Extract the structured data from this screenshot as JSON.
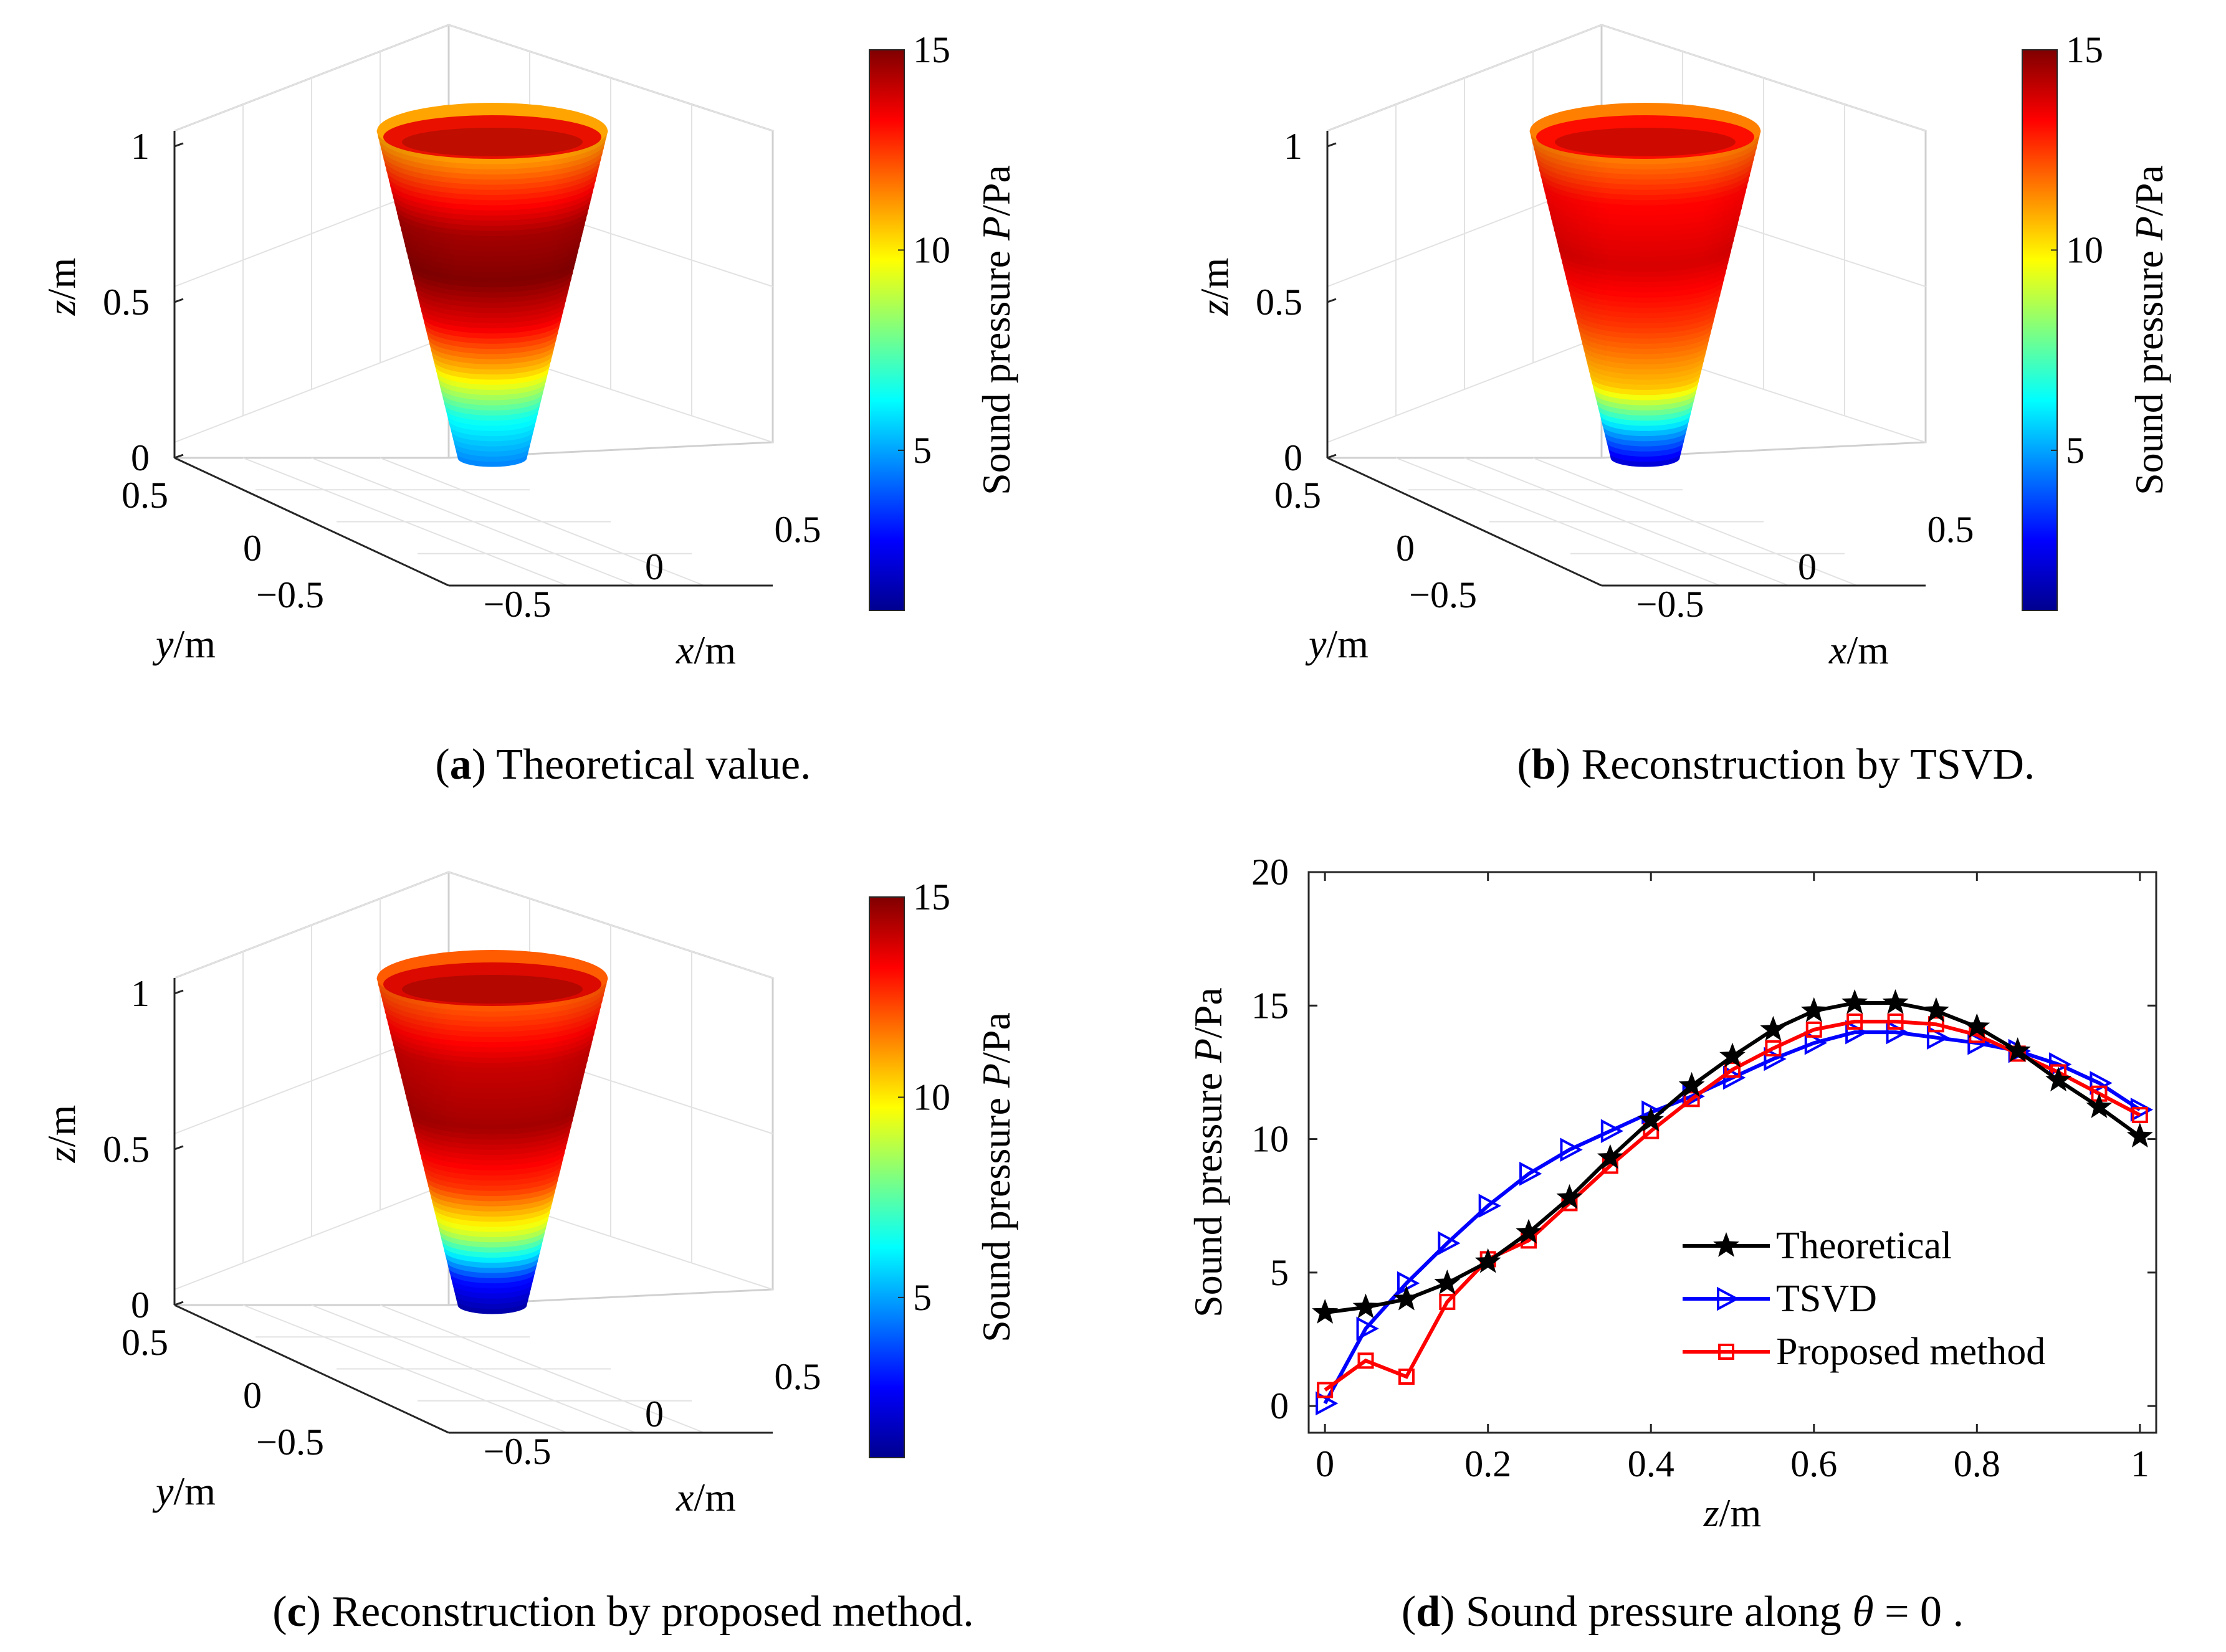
{
  "colormap": {
    "name": "jet",
    "min": 1,
    "max": 15
  },
  "colorbar": {
    "ticks": [
      "5",
      "10",
      "15"
    ],
    "tick_values": [
      5,
      10,
      15
    ],
    "label_main": "Sound pressure ",
    "label_var": "P",
    "label_unit": "/Pa"
  },
  "axes3d": {
    "z_ticks": [
      "0",
      "0.5",
      "1"
    ],
    "x_ticks": [
      "−0.5",
      "0",
      "0.5"
    ],
    "y_ticks": [
      "−0.5",
      "0",
      "0.5"
    ],
    "z_label": {
      "var": "z",
      "unit": "/m"
    },
    "x_label": {
      "var": "x",
      "unit": "/m"
    },
    "y_label": {
      "var": "y",
      "unit": "/m"
    }
  },
  "panels": [
    {
      "letter": "a",
      "caption_pre": "(",
      "caption_post": ") Theoretical value.",
      "cone_profile": [
        [
          0,
          4.5
        ],
        [
          0.15,
          6.5
        ],
        [
          0.3,
          10.5
        ],
        [
          0.45,
          13.5
        ],
        [
          0.6,
          15
        ],
        [
          0.75,
          14.5
        ],
        [
          0.9,
          12.5
        ],
        [
          1,
          11
        ]
      ]
    },
    {
      "letter": "b",
      "caption_pre": "(",
      "caption_post": ") Reconstruction by TSVD.",
      "cone_profile": [
        [
          0,
          2
        ],
        [
          0.1,
          5
        ],
        [
          0.25,
          10.5
        ],
        [
          0.45,
          12.5
        ],
        [
          0.65,
          13.8
        ],
        [
          0.85,
          13.2
        ],
        [
          1,
          11.5
        ]
      ]
    },
    {
      "letter": "c",
      "caption_pre": "(",
      "caption_post": ") Reconstruction by proposed method.",
      "cone_profile": [
        [
          0,
          1.5
        ],
        [
          0.1,
          3
        ],
        [
          0.25,
          9
        ],
        [
          0.4,
          12.5
        ],
        [
          0.6,
          14.5
        ],
        [
          0.8,
          14
        ],
        [
          1,
          12
        ]
      ]
    }
  ],
  "panel_d_caption": {
    "letter": "d",
    "pre": "(",
    "text": ") Sound pressure along",
    "theta": "θ",
    "eq": " = 0",
    "end": "."
  },
  "chart_data": {
    "type": "line",
    "xlabel_var": "z",
    "xlabel_unit": "/m",
    "ylabel_main": "Sound pressure ",
    "ylabel_var": "P",
    "ylabel_unit": "/Pa",
    "xlim": [
      -0.02,
      1.02
    ],
    "ylim": [
      -1,
      20
    ],
    "x_ticks": [
      0,
      0.2,
      0.4,
      0.6,
      0.8,
      1
    ],
    "x_tick_labels": [
      "0",
      "0.2",
      "0.4",
      "0.6",
      "0.8",
      "1"
    ],
    "y_ticks": [
      0,
      5,
      10,
      15,
      20
    ],
    "y_tick_labels": [
      "0",
      "5",
      "10",
      "15",
      "20"
    ],
    "x": [
      0,
      0.05,
      0.1,
      0.15,
      0.2,
      0.25,
      0.3,
      0.35,
      0.4,
      0.45,
      0.5,
      0.55,
      0.6,
      0.65,
      0.7,
      0.75,
      0.8,
      0.85,
      0.9,
      0.95,
      1
    ],
    "series": [
      {
        "name": "Theoretical",
        "color": "#000000",
        "marker": "star",
        "values": [
          3.5,
          3.7,
          4.0,
          4.6,
          5.4,
          6.5,
          7.8,
          9.3,
          10.7,
          12.0,
          13.1,
          14.1,
          14.8,
          15.1,
          15.1,
          14.8,
          14.2,
          13.3,
          12.2,
          11.2,
          10.1
        ]
      },
      {
        "name": "TSVD",
        "color": "#0000ff",
        "marker": "triangle-right",
        "values": [
          0.1,
          2.9,
          4.6,
          6.1,
          7.5,
          8.7,
          9.6,
          10.3,
          11.0,
          11.6,
          12.3,
          13.0,
          13.6,
          14.0,
          14.0,
          13.8,
          13.6,
          13.3,
          12.8,
          12.1,
          11.1
        ]
      },
      {
        "name": "Proposed method",
        "color": "#ff0000",
        "marker": "square",
        "values": [
          0.6,
          1.7,
          1.1,
          3.9,
          5.5,
          6.2,
          7.6,
          9.0,
          10.3,
          11.5,
          12.6,
          13.4,
          14.1,
          14.4,
          14.4,
          14.3,
          13.9,
          13.2,
          12.5,
          11.7,
          10.9
        ]
      }
    ]
  }
}
